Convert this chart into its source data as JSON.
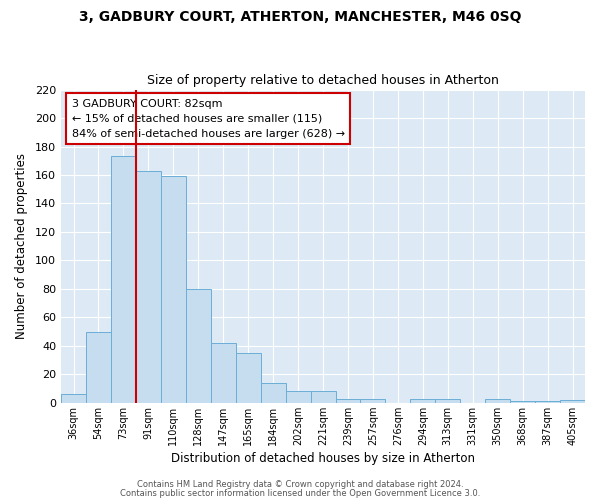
{
  "title1": "3, GADBURY COURT, ATHERTON, MANCHESTER, M46 0SQ",
  "title2": "Size of property relative to detached houses in Atherton",
  "xlabel": "Distribution of detached houses by size in Atherton",
  "ylabel": "Number of detached properties",
  "bar_labels": [
    "36sqm",
    "54sqm",
    "73sqm",
    "91sqm",
    "110sqm",
    "128sqm",
    "147sqm",
    "165sqm",
    "184sqm",
    "202sqm",
    "221sqm",
    "239sqm",
    "257sqm",
    "276sqm",
    "294sqm",
    "313sqm",
    "331sqm",
    "350sqm",
    "368sqm",
    "387sqm",
    "405sqm"
  ],
  "bar_values": [
    6,
    50,
    173,
    163,
    159,
    80,
    42,
    35,
    14,
    8,
    8,
    3,
    3,
    0,
    3,
    3,
    0,
    3,
    1,
    1,
    2
  ],
  "bar_color_fill": "#c5ddef",
  "bar_color_edge": "#6aaed6",
  "vline_color": "#cc0000",
  "vline_pos": 2.5,
  "annotation_text": "3 GADBURY COURT: 82sqm\n← 15% of detached houses are smaller (115)\n84% of semi-detached houses are larger (628) →",
  "annotation_box_color": "#ffffff",
  "annotation_box_edge": "#cc0000",
  "ylim": [
    0,
    220
  ],
  "yticks": [
    0,
    20,
    40,
    60,
    80,
    100,
    120,
    140,
    160,
    180,
    200,
    220
  ],
  "footer1": "Contains HM Land Registry data © Crown copyright and database right 2024.",
  "footer2": "Contains public sector information licensed under the Open Government Licence 3.0.",
  "fig_bg_color": "#ffffff",
  "plot_bg_color": "#ddeaf5"
}
